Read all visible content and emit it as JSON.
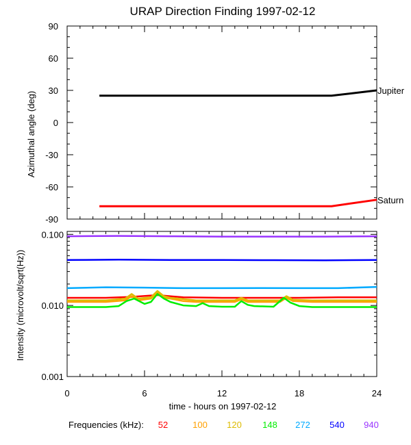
{
  "title": "URAP Direction Finding  1997-02-12",
  "xlabel": "time - hours on 1997-02-12",
  "legend_label": "Frequencies (kHz):",
  "chart_data": [
    {
      "type": "line",
      "panel": "top",
      "ylabel": "Azimuthal angle (deg)",
      "xlim": [
        0,
        24
      ],
      "ylim": [
        -90,
        90
      ],
      "yticks": [
        90,
        60,
        30,
        0,
        -30,
        -60,
        -90
      ],
      "yminor": 10,
      "xminor": 1,
      "series": [
        {
          "name": "Jupiter",
          "color": "#000000",
          "x": [
            2.5,
            20.5,
            24
          ],
          "y": [
            25,
            25,
            30
          ]
        },
        {
          "name": "Saturn",
          "color": "#ff0000",
          "x": [
            2.5,
            20.5,
            24
          ],
          "y": [
            -78,
            -78,
            -72
          ]
        }
      ]
    },
    {
      "type": "line",
      "panel": "bottom",
      "yscale": "log",
      "ylabel": "Intensity (microvolt/sqrt(Hz))",
      "xlim": [
        0,
        24
      ],
      "ylim": [
        0.001,
        0.11
      ],
      "yticks": [
        0.1,
        0.01,
        0.001
      ],
      "yticklabels": [
        "0.100",
        "0.010",
        "0.001"
      ],
      "xticks": [
        0,
        6,
        12,
        18,
        24
      ],
      "xminor": 1,
      "series": [
        {
          "name": "52",
          "color": "#ff0000",
          "x": [
            0,
            3,
            5,
            7,
            9,
            12,
            15,
            18,
            21,
            24
          ],
          "y": [
            0.0128,
            0.0128,
            0.0132,
            0.014,
            0.013,
            0.0128,
            0.0128,
            0.0128,
            0.013,
            0.013
          ]
        },
        {
          "name": "100",
          "color": "#ffa000",
          "x": [
            0,
            3,
            4.5,
            5,
            5.5,
            6.5,
            7,
            7.5,
            8,
            9,
            10,
            13,
            13.5,
            14,
            16.5,
            17,
            17.5,
            19,
            24
          ],
          "y": [
            0.0112,
            0.0112,
            0.0118,
            0.0135,
            0.0118,
            0.0125,
            0.015,
            0.0128,
            0.0125,
            0.0115,
            0.0112,
            0.0112,
            0.0122,
            0.0112,
            0.0112,
            0.0128,
            0.0115,
            0.0112,
            0.0112
          ]
        },
        {
          "name": "120",
          "color": "#ddbb00",
          "x": [
            0,
            3,
            4.5,
            5,
            5.5,
            6.5,
            7,
            7.5,
            8,
            10,
            13,
            13.5,
            14,
            16.5,
            17,
            17.5,
            19,
            24
          ],
          "y": [
            0.0118,
            0.0118,
            0.0125,
            0.0145,
            0.0125,
            0.013,
            0.016,
            0.0135,
            0.0128,
            0.0118,
            0.0118,
            0.0128,
            0.0118,
            0.0118,
            0.0135,
            0.012,
            0.0118,
            0.0118
          ]
        },
        {
          "name": "148",
          "color": "#00ee00",
          "x": [
            0,
            3,
            4,
            4.6,
            5.2,
            6,
            6.5,
            7,
            7.5,
            8,
            9,
            10,
            10.5,
            11,
            12,
            13,
            13.5,
            14,
            14.5,
            16,
            16.8,
            17.3,
            18,
            19,
            24
          ],
          "y": [
            0.0095,
            0.0095,
            0.0098,
            0.0115,
            0.0125,
            0.0105,
            0.0112,
            0.0145,
            0.0125,
            0.0112,
            0.01,
            0.0098,
            0.0108,
            0.0098,
            0.0096,
            0.0096,
            0.0115,
            0.0102,
            0.0098,
            0.0096,
            0.0128,
            0.011,
            0.0098,
            0.0095,
            0.0095
          ]
        },
        {
          "name": "272",
          "color": "#00aaff",
          "x": [
            0,
            3,
            6,
            9,
            12,
            15,
            18,
            21,
            24
          ],
          "y": [
            0.0175,
            0.018,
            0.0178,
            0.0175,
            0.0175,
            0.0176,
            0.0175,
            0.0175,
            0.0182
          ]
        },
        {
          "name": "540",
          "color": "#0000ff",
          "x": [
            0,
            4,
            8,
            12,
            16,
            20,
            24
          ],
          "y": [
            0.0435,
            0.044,
            0.0435,
            0.0435,
            0.0433,
            0.0432,
            0.0435
          ]
        },
        {
          "name": "940",
          "color": "#9933ff",
          "x": [
            0,
            4,
            8,
            12,
            16,
            20,
            24
          ],
          "y": [
            0.094,
            0.095,
            0.094,
            0.093,
            0.093,
            0.093,
            0.094
          ]
        }
      ]
    }
  ]
}
